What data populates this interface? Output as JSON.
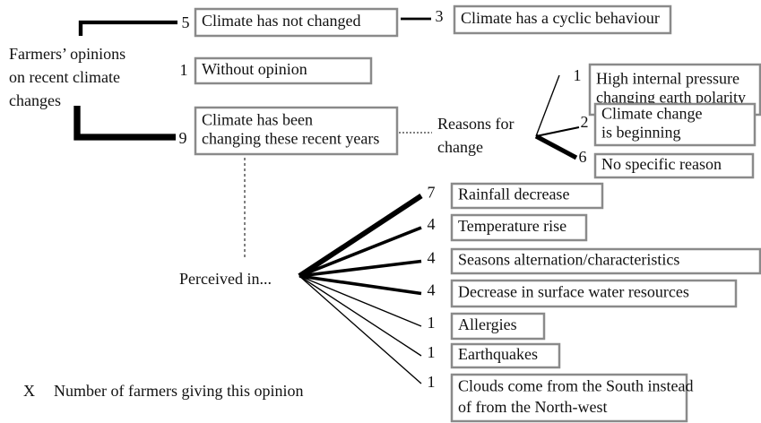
{
  "root": {
    "lines": [
      "Farmers’ opinions",
      "on recent climate",
      "changes"
    ]
  },
  "branches": [
    {
      "count": 5,
      "lines": [
        "Climate has not changed"
      ],
      "sub": {
        "count": 3,
        "lines": [
          "Climate has a cyclic behaviour"
        ]
      }
    },
    {
      "count": 1,
      "lines": [
        "Without opinion"
      ]
    },
    {
      "count": 9,
      "lines": [
        "Climate has been",
        "changing these recent years"
      ]
    }
  ],
  "reasons": {
    "lines": [
      "Reasons for",
      "change"
    ],
    "items": [
      {
        "count": 1,
        "lines": [
          "High internal pressure",
          "changing earth polarity"
        ]
      },
      {
        "count": 2,
        "lines": [
          "Climate change",
          "is beginning"
        ]
      },
      {
        "count": 6,
        "lines": [
          "No specific reason"
        ]
      }
    ]
  },
  "perceived": {
    "label": "Perceived in...",
    "items": [
      {
        "count": 7,
        "lines": [
          "Rainfall decrease"
        ]
      },
      {
        "count": 4,
        "lines": [
          "Temperature rise"
        ]
      },
      {
        "count": 4,
        "lines": [
          "Seasons alternation/characteristics"
        ]
      },
      {
        "count": 4,
        "lines": [
          "Decrease in surface water resources"
        ]
      },
      {
        "count": 1,
        "lines": [
          "Allergies"
        ]
      },
      {
        "count": 1,
        "lines": [
          "Earthquakes"
        ]
      },
      {
        "count": 1,
        "lines": [
          "Clouds come from the South instead",
          "of from the North-west"
        ]
      }
    ]
  },
  "legend": {
    "key": "X",
    "text": "Number of farmers giving this opinion"
  }
}
